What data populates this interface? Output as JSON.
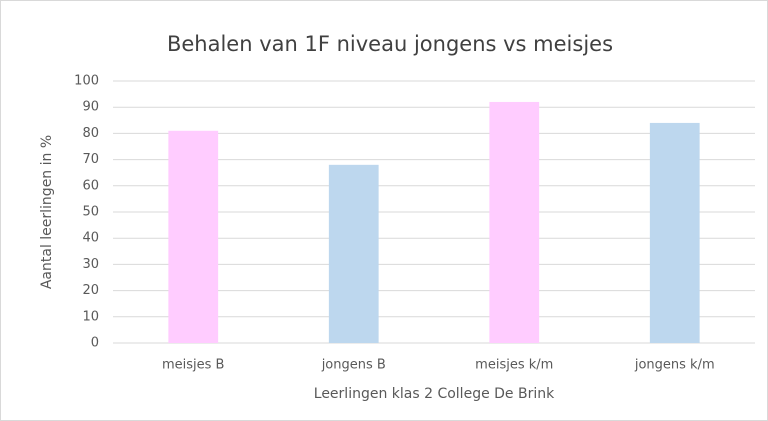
{
  "chart_data": {
    "type": "bar",
    "title": "Behalen van 1F niveau jongens vs meisjes",
    "x_label": "Leerlingen klas 2 College De Brink",
    "y_label": "Aantal leerlingen in %",
    "categories": [
      "meisjes B",
      "jongens B",
      "meisjes k/m",
      "jongens k/m"
    ],
    "values": [
      81,
      68,
      92,
      84
    ],
    "colors": [
      "#ffccff",
      "#bdd7ee",
      "#ffccff",
      "#bdd7ee"
    ],
    "ylim": [
      0,
      100
    ],
    "yticks": [
      0,
      10,
      20,
      30,
      40,
      50,
      60,
      70,
      80,
      90,
      100
    ],
    "grid": true
  }
}
